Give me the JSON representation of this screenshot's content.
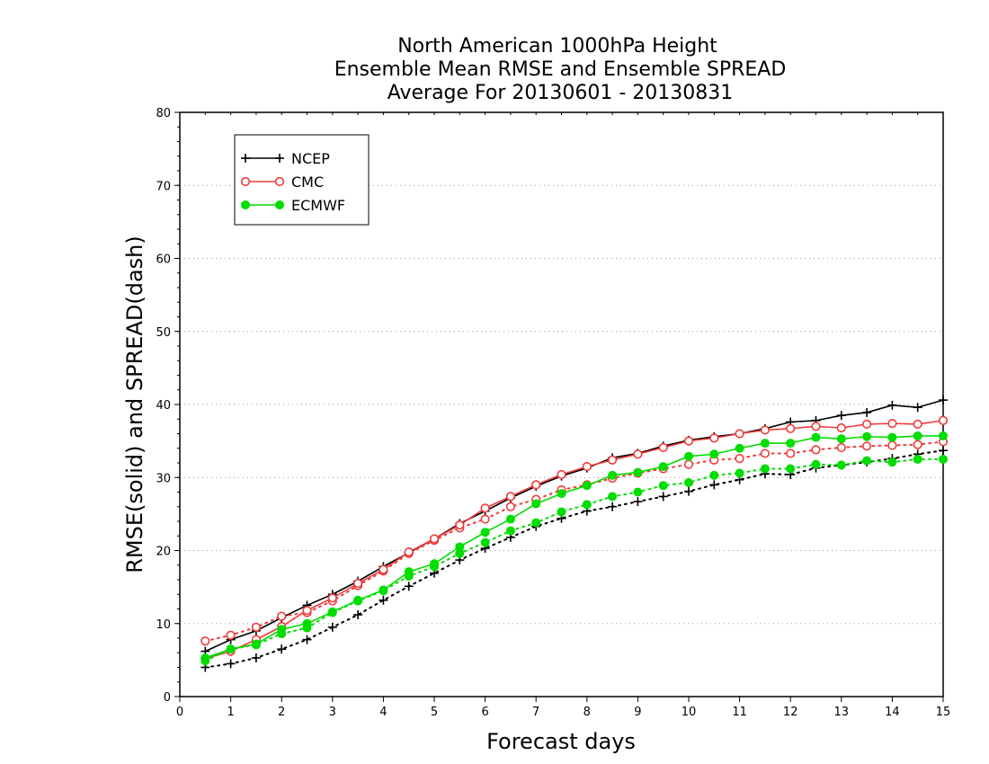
{
  "chart_data": {
    "type": "line",
    "title": [
      "North American 1000hPa Height",
      "Ensemble Mean RMSE and Ensemble SPREAD",
      "Average For 20130601 - 20130831"
    ],
    "xlabel": "Forecast days",
    "ylabel": "RMSE(solid) and SPREAD(dash)",
    "xlim": [
      0,
      15
    ],
    "ylim": [
      0,
      80
    ],
    "xticks": [
      0,
      1,
      2,
      3,
      4,
      5,
      6,
      7,
      8,
      9,
      10,
      11,
      12,
      13,
      14,
      15
    ],
    "yticks": [
      0,
      10,
      20,
      30,
      40,
      50,
      60,
      70,
      80
    ],
    "grid": "horizontal-dotted",
    "legend_position": "top-left",
    "x": [
      0.5,
      1,
      1.5,
      2,
      2.5,
      3,
      3.5,
      4,
      4.5,
      5,
      5.5,
      6,
      6.5,
      7,
      7.5,
      8,
      8.5,
      9,
      9.5,
      10,
      10.5,
      11,
      11.5,
      12,
      12.5,
      13,
      13.5,
      14,
      14.5,
      15
    ],
    "series": [
      {
        "name": "NCEP",
        "marker": "plus",
        "color": "#000000",
        "rmse": [
          6.2,
          7.8,
          9.0,
          10.8,
          12.5,
          14.0,
          15.8,
          17.8,
          19.7,
          21.6,
          23.7,
          25.4,
          27.2,
          28.8,
          30.2,
          31.3,
          32.7,
          33.3,
          34.3,
          35.1,
          35.6,
          36.0,
          36.7,
          37.6,
          37.8,
          38.5,
          38.9,
          39.9,
          39.6,
          40.6
        ],
        "spread": [
          4.0,
          4.5,
          5.3,
          6.5,
          7.8,
          9.5,
          11.2,
          13.2,
          15.1,
          16.9,
          18.7,
          20.3,
          21.8,
          23.3,
          24.4,
          25.4,
          26.0,
          26.7,
          27.4,
          28.1,
          29.0,
          29.7,
          30.5,
          30.4,
          31.3,
          31.7,
          32.1,
          32.6,
          33.2,
          33.7
        ]
      },
      {
        "name": "CMC",
        "marker": "open-circle",
        "color": "#ee3b3b",
        "rmse": [
          5.2,
          6.2,
          7.8,
          9.6,
          11.8,
          13.5,
          15.5,
          17.4,
          19.8,
          21.6,
          23.5,
          25.8,
          27.4,
          29.0,
          30.4,
          31.5,
          32.4,
          33.2,
          34.1,
          35.0,
          35.4,
          36.0,
          36.5,
          36.7,
          37.0,
          36.8,
          37.3,
          37.4,
          37.3,
          37.8
        ],
        "spread": [
          7.6,
          8.4,
          9.5,
          11.0,
          11.5,
          13.1,
          15.2,
          17.2,
          19.6,
          21.4,
          23.1,
          24.3,
          26.0,
          27.0,
          28.3,
          29.0,
          29.9,
          30.6,
          31.2,
          31.8,
          32.4,
          32.6,
          33.3,
          33.3,
          33.8,
          34.1,
          34.3,
          34.4,
          34.5,
          34.9
        ]
      },
      {
        "name": "ECMWF",
        "marker": "filled-circle",
        "color": "#00dd00",
        "rmse": [
          5.3,
          6.5,
          7.2,
          9.2,
          10.0,
          11.6,
          13.2,
          14.6,
          17.1,
          18.2,
          20.5,
          22.5,
          24.3,
          26.4,
          27.8,
          28.9,
          30.3,
          30.7,
          31.5,
          32.9,
          33.2,
          34.0,
          34.7,
          34.7,
          35.5,
          35.3,
          35.6,
          35.5,
          35.7,
          35.7
        ],
        "spread": [
          4.9,
          6.5,
          7.1,
          8.6,
          9.4,
          11.5,
          13.1,
          14.5,
          16.5,
          17.8,
          19.6,
          21.1,
          22.7,
          23.8,
          25.3,
          26.3,
          27.4,
          28.0,
          28.9,
          29.3,
          30.3,
          30.6,
          31.2,
          31.2,
          31.8,
          31.7,
          32.3,
          32.1,
          32.5,
          32.5
        ]
      }
    ]
  }
}
